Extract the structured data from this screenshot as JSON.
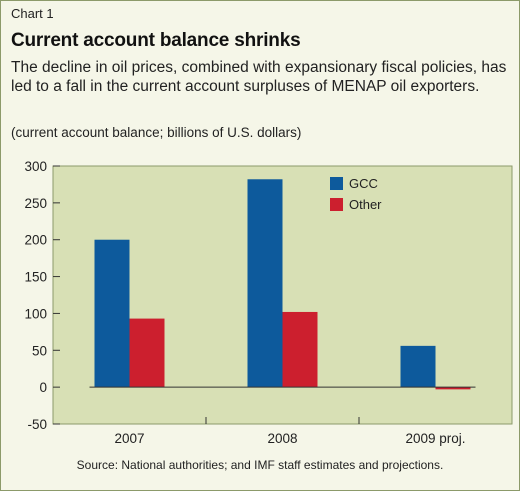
{
  "header": {
    "chart_number": "Chart 1",
    "title": "Current account balance shrinks",
    "subtitle": "The decline in oil prices, combined with expansionary fiscal policies, has led to a fall in the current account surpluses of MENAP oil exporters.",
    "units": "(current account balance; billions of U.S. dollars)"
  },
  "footer": {
    "source": "Source: National authorities; and IMF staff estimates and projections."
  },
  "colors": {
    "plot_background": "#d8e0b5",
    "gcc": "#0d5a9c",
    "other": "#cc1f2e"
  },
  "chart_data": {
    "type": "bar",
    "title": "Current account balance shrinks",
    "categories": [
      "2007",
      "2008",
      "2009 proj."
    ],
    "series": [
      {
        "name": "GCC",
        "values": [
          200,
          282,
          56
        ]
      },
      {
        "name": "Other",
        "values": [
          93,
          102,
          -3
        ]
      }
    ],
    "ylim": [
      -50,
      300
    ],
    "yticks": [
      300,
      250,
      200,
      150,
      100,
      50,
      0,
      -50
    ],
    "legend": "top-right",
    "grid": false
  }
}
